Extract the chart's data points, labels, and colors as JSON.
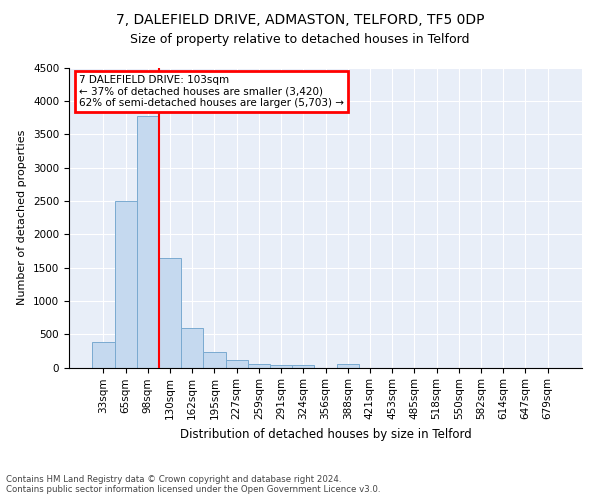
{
  "title": "7, DALEFIELD DRIVE, ADMASTON, TELFORD, TF5 0DP",
  "subtitle": "Size of property relative to detached houses in Telford",
  "xlabel": "Distribution of detached houses by size in Telford",
  "ylabel": "Number of detached properties",
  "footnote1": "Contains HM Land Registry data © Crown copyright and database right 2024.",
  "footnote2": "Contains public sector information licensed under the Open Government Licence v3.0.",
  "bar_color": "#c5d9ef",
  "bar_edge_color": "#7aaad0",
  "annotation_text": "7 DALEFIELD DRIVE: 103sqm\n← 37% of detached houses are smaller (3,420)\n62% of semi-detached houses are larger (5,703) →",
  "categories": [
    "33sqm",
    "65sqm",
    "98sqm",
    "130sqm",
    "162sqm",
    "195sqm",
    "227sqm",
    "259sqm",
    "291sqm",
    "324sqm",
    "356sqm",
    "388sqm",
    "421sqm",
    "453sqm",
    "485sqm",
    "518sqm",
    "550sqm",
    "582sqm",
    "614sqm",
    "647sqm",
    "679sqm"
  ],
  "values": [
    380,
    2500,
    3780,
    1640,
    590,
    240,
    110,
    60,
    45,
    45,
    0,
    55,
    0,
    0,
    0,
    0,
    0,
    0,
    0,
    0,
    0
  ],
  "ylim": [
    0,
    4500
  ],
  "yticks": [
    0,
    500,
    1000,
    1500,
    2000,
    2500,
    3000,
    3500,
    4000,
    4500
  ],
  "property_bin_index": 2,
  "bg_color": "#e8eef8",
  "title_fontsize": 10,
  "subtitle_fontsize": 9,
  "ylabel_fontsize": 8,
  "xlabel_fontsize": 8.5,
  "tick_fontsize": 7.5,
  "annot_fontsize": 7.5,
  "footnote_fontsize": 6.2
}
